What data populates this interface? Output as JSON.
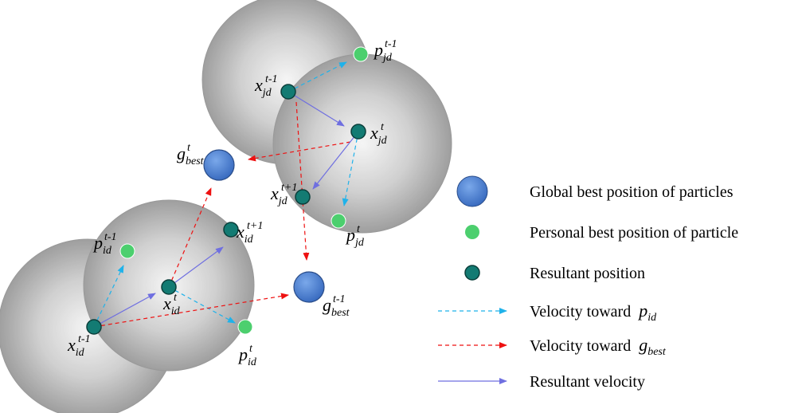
{
  "labels": [
    {
      "base": "x",
      "sub": "id",
      "sup": "t-1"
    },
    {
      "base": "p",
      "sub": "id",
      "sup": "t-1"
    },
    {
      "base": "x",
      "sub": "id",
      "sup": "t"
    },
    {
      "base": "x",
      "sub": "id",
      "sup": "t+1"
    },
    {
      "base": "p",
      "sub": "id",
      "sup": "t"
    },
    {
      "base": "g",
      "sub": "best",
      "sup": "t-1"
    },
    {
      "base": "g",
      "sub": "best",
      "sup": "t"
    },
    {
      "base": "x",
      "sub": "jd",
      "sup": "t-1"
    },
    {
      "base": "p",
      "sub": "jd",
      "sup": "t-1"
    },
    {
      "base": "x",
      "sub": "jd",
      "sup": "t"
    },
    {
      "base": "x",
      "sub": "jd",
      "sup": "t+1"
    },
    {
      "base": "p",
      "sub": "jd",
      "sup": "t"
    }
  ],
  "legend": [
    {
      "text": "Global best position of particles"
    },
    {
      "text": "Personal best position of particle"
    },
    {
      "text": "Resultant position"
    },
    {
      "text": "Velocity toward",
      "base": "p",
      "sub": "id"
    },
    {
      "text": "Velocity toward",
      "base": "g",
      "sub": "best"
    },
    {
      "text": "Resultant velocity"
    }
  ]
}
